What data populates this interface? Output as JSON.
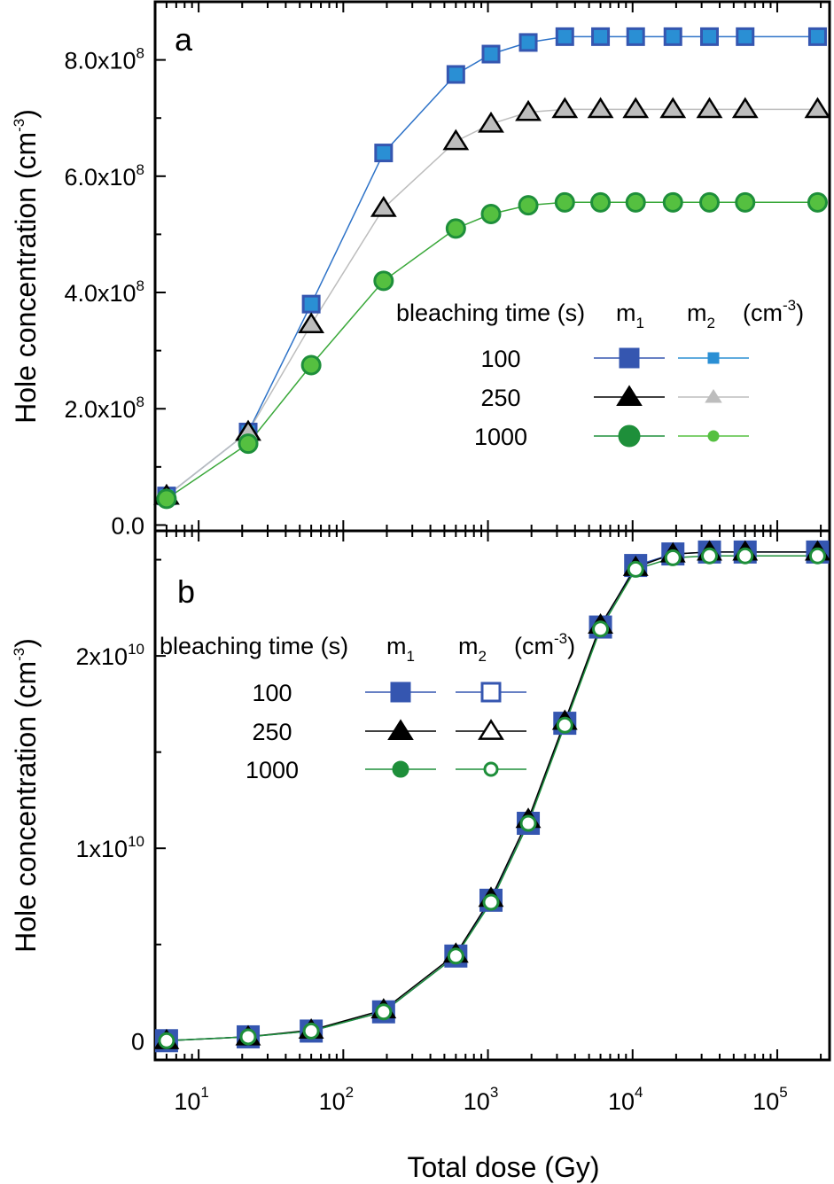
{
  "figure": {
    "x_axis_title": "Total dose (Gy)",
    "x_ticks": [
      {
        "base": "10",
        "exp": "1",
        "value": 10
      },
      {
        "base": "10",
        "exp": "2",
        "value": 100
      },
      {
        "base": "10",
        "exp": "3",
        "value": 1000
      },
      {
        "base": "10",
        "exp": "4",
        "value": 10000
      },
      {
        "base": "10",
        "exp": "5",
        "value": 100000
      }
    ]
  },
  "chart_data": [
    {
      "type": "line",
      "panel_label": "a",
      "xlabel": "Total dose (Gy)",
      "ylabel": "Hole concentration (cm-3)",
      "ylabel_parts": {
        "main": "Hole concentration (cm",
        "sup": "-3",
        "end": ")"
      },
      "xscale": "log",
      "xlim": [
        5,
        230000
      ],
      "ylim": [
        -10000000.0,
        900000000.0
      ],
      "y_ticks": [
        {
          "value": 0,
          "label": "0.0"
        },
        {
          "value": 200000000.0,
          "label": "2.0x10",
          "exp": "8"
        },
        {
          "value": 400000000.0,
          "label": "4.0x10",
          "exp": "8"
        },
        {
          "value": 600000000.0,
          "label": "6.0x10",
          "exp": "8"
        },
        {
          "value": 800000000.0,
          "label": "8.0x10",
          "exp": "8"
        }
      ],
      "x": [
        6,
        22,
        60,
        190,
        600,
        1050,
        1900,
        3400,
        6000,
        10500,
        19000,
        34000,
        60000,
        190000
      ],
      "series": [
        {
          "name": "100",
          "group": "m1",
          "color": "#2e73c8",
          "marker": "square",
          "values": [
            50000000.0,
            160000000.0,
            380000000.0,
            640000000.0,
            775000000.0,
            810000000.0,
            830000000.0,
            840000000.0,
            840000000.0,
            840000000.0,
            840000000.0,
            840000000.0,
            840000000.0,
            840000000.0
          ]
        },
        {
          "name": "250",
          "group": "m1",
          "color": "#bdbdbd",
          "marker": "triangle",
          "values": [
            50000000.0,
            160000000.0,
            345000000.0,
            545000000.0,
            660000000.0,
            690000000.0,
            710000000.0,
            715000000.0,
            715000000.0,
            715000000.0,
            715000000.0,
            715000000.0,
            715000000.0,
            715000000.0
          ]
        },
        {
          "name": "1000",
          "group": "m1",
          "color": "#3aa83a",
          "marker": "circle",
          "values": [
            45000000.0,
            140000000.0,
            275000000.0,
            420000000.0,
            510000000.0,
            535000000.0,
            550000000.0,
            555000000.0,
            555000000.0,
            555000000.0,
            555000000.0,
            555000000.0,
            555000000.0,
            555000000.0
          ]
        }
      ],
      "legend": {
        "header": "bleaching time (s)",
        "m1": "m",
        "m1_sub": "1",
        "m2": "m",
        "m2_sub": "2",
        "unit": "(cm",
        "unit_sup": "-3",
        "unit_end": ")",
        "rows": [
          {
            "label": "100",
            "m1_color": "#3556b0",
            "m1_marker": "square",
            "m2_color": "#2a8fd4",
            "m2_marker": "square",
            "m2_fill": "filled"
          },
          {
            "label": "250",
            "m1_color": "#000000",
            "m1_marker": "triangle",
            "m2_color": "#bdbdbd",
            "m2_marker": "triangle",
            "m2_fill": "filled"
          },
          {
            "label": "1000",
            "m1_color": "#1e8f3a",
            "m1_marker": "circle",
            "m2_color": "#55c040",
            "m2_marker": "circle",
            "m2_fill": "filled"
          }
        ],
        "placement": "center-right"
      }
    },
    {
      "type": "line",
      "panel_label": "b",
      "xlabel": "Total dose (Gy)",
      "ylabel": "Hole concentration (cm-3)",
      "ylabel_parts": {
        "main": "Hole concentration  (cm",
        "sup": "-3",
        "end": ")"
      },
      "xscale": "log",
      "xlim": [
        5,
        230000
      ],
      "ylim": [
        -1000000000.0,
        26500000000.0
      ],
      "y_ticks": [
        {
          "value": 0,
          "label": "0"
        },
        {
          "value": 10000000000.0,
          "label": "1x10",
          "exp": "10"
        },
        {
          "value": 20000000000.0,
          "label": "2x10",
          "exp": "10"
        }
      ],
      "x": [
        6,
        22,
        60,
        190,
        600,
        1050,
        1900,
        3400,
        6000,
        10500,
        19000,
        34000,
        60000,
        190000
      ],
      "series": [
        {
          "name": "100",
          "group": "m1",
          "color": "#3556b0",
          "marker": "square",
          "values": [
            0.0,
            200000000.0,
            500000000.0,
            1500000000.0,
            4400000000.0,
            7300000000.0,
            11300000000.0,
            16500000000.0,
            21500000000.0,
            24700000000.0,
            25300000000.0,
            25400000000.0,
            25400000000.0,
            25400000000.0
          ]
        },
        {
          "name": "250",
          "group": "m1",
          "color": "#000000",
          "marker": "triangle",
          "values": [
            0.0,
            200000000.0,
            550000000.0,
            1600000000.0,
            4500000000.0,
            7400000000.0,
            11500000000.0,
            16600000000.0,
            21600000000.0,
            24600000000.0,
            25300000000.0,
            25400000000.0,
            25400000000.0,
            25400000000.0
          ]
        },
        {
          "name": "1000",
          "group": "m1",
          "color": "#1e8f3a",
          "marker": "circle",
          "values": [
            0.0,
            200000000.0,
            500000000.0,
            1500000000.0,
            4400000000.0,
            7200000000.0,
            11300000000.0,
            16400000000.0,
            21400000000.0,
            24500000000.0,
            25100000000.0,
            25200000000.0,
            25200000000.0,
            25200000000.0
          ]
        }
      ],
      "legend": {
        "header": "bleaching time (s)",
        "m1": "m",
        "m1_sub": "1",
        "m2": "m",
        "m2_sub": "2",
        "unit": "(cm",
        "unit_sup": "-3",
        "unit_end": ")",
        "rows": [
          {
            "label": "100",
            "m1_color": "#3556b0",
            "m1_marker": "square",
            "m2_color": "#3556b0",
            "m2_marker": "square",
            "m2_fill": "open"
          },
          {
            "label": "250",
            "m1_color": "#000000",
            "m1_marker": "triangle",
            "m2_color": "#000000",
            "m2_marker": "triangle",
            "m2_fill": "open"
          },
          {
            "label": "1000",
            "m1_color": "#1e8f3a",
            "m1_marker": "circle",
            "m2_color": "#1e8f3a",
            "m2_marker": "circle",
            "m2_fill": "open"
          }
        ],
        "placement": "top-left"
      }
    }
  ]
}
